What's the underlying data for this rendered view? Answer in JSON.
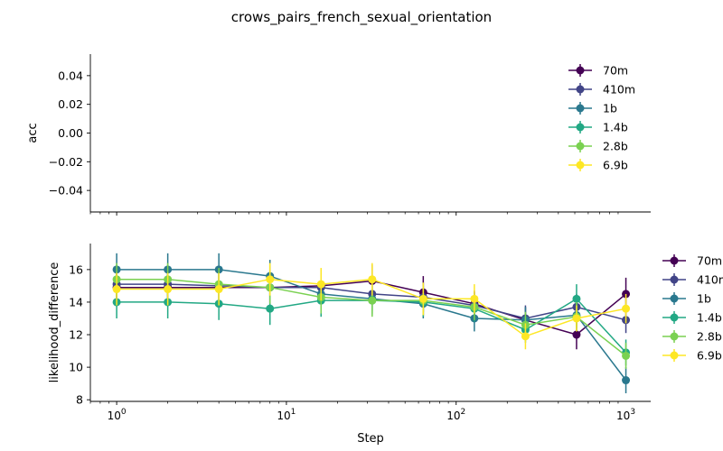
{
  "title": "crows_pairs_french_sexual_orientation",
  "colors": {
    "70m": "#440154",
    "410m": "#414487",
    "1b": "#2a788e",
    "1.4b": "#22a884",
    "2.8b": "#7ad151",
    "6.9b": "#fde725"
  },
  "chart_data": [
    {
      "type": "line",
      "ylabel": "acc",
      "xscale": "log",
      "ylim": [
        -0.055,
        0.055
      ],
      "yticks": [
        "0.04",
        "0.02",
        "0.00",
        "−0.02",
        "−0.04"
      ],
      "ytick_values": [
        0.04,
        0.02,
        0.0,
        -0.02,
        -0.04
      ],
      "legend": [
        "70m",
        "410m",
        "1b",
        "1.4b",
        "2.8b",
        "6.9b"
      ],
      "legend_position": "top-right",
      "series": [
        {
          "name": "70m",
          "x": [],
          "y": []
        },
        {
          "name": "410m",
          "x": [],
          "y": []
        },
        {
          "name": "1b",
          "x": [],
          "y": []
        },
        {
          "name": "1.4b",
          "x": [],
          "y": []
        },
        {
          "name": "2.8b",
          "x": [],
          "y": []
        },
        {
          "name": "6.9b",
          "x": [],
          "y": []
        }
      ]
    },
    {
      "type": "line",
      "xlabel": "Step",
      "ylabel": "likelihood_difference",
      "xscale": "log",
      "xlim": [
        0.7,
        1400
      ],
      "ylim": [
        7.9,
        17.6
      ],
      "xticks": [
        1,
        10,
        100,
        1000
      ],
      "yticks": [
        8,
        10,
        12,
        14,
        16
      ],
      "legend": [
        "70m",
        "410m",
        "1b",
        "1.4b",
        "2.8b",
        "6.9b"
      ],
      "legend_position": "outside-right",
      "series": [
        {
          "name": "70m",
          "x": [
            1,
            2,
            4,
            8,
            16,
            32,
            64,
            128,
            256,
            512,
            1000
          ],
          "y": [
            14.9,
            14.9,
            14.9,
            14.9,
            15.0,
            15.3,
            14.6,
            13.9,
            12.9,
            12.0,
            14.5
          ],
          "err": [
            1.0,
            1.0,
            1.0,
            1.0,
            1.0,
            1.0,
            1.0,
            0.8,
            0.8,
            0.9,
            1.0
          ]
        },
        {
          "name": "410m",
          "x": [
            1,
            2,
            4,
            8,
            16,
            32,
            64,
            128,
            256,
            512,
            1000
          ],
          "y": [
            15.1,
            15.1,
            15.0,
            14.9,
            14.9,
            14.5,
            14.3,
            13.8,
            13.0,
            13.7,
            12.9
          ],
          "err": [
            1.0,
            1.0,
            1.0,
            1.0,
            1.0,
            1.0,
            0.9,
            0.8,
            0.8,
            0.8,
            0.8
          ]
        },
        {
          "name": "1b",
          "x": [
            1,
            2,
            4,
            8,
            16,
            32,
            64,
            128,
            256,
            512,
            1000
          ],
          "y": [
            16.0,
            16.0,
            16.0,
            15.6,
            14.5,
            14.2,
            13.9,
            13.0,
            12.9,
            13.2,
            9.2
          ],
          "err": [
            1.0,
            1.0,
            1.0,
            1.0,
            0.9,
            0.9,
            0.9,
            0.8,
            0.8,
            0.8,
            0.8
          ]
        },
        {
          "name": "1.4b",
          "x": [
            1,
            2,
            4,
            8,
            16,
            32,
            64,
            128,
            256,
            512,
            1000
          ],
          "y": [
            14.0,
            14.0,
            13.9,
            13.6,
            14.1,
            14.1,
            14.0,
            13.6,
            12.3,
            14.2,
            10.9
          ],
          "err": [
            1.0,
            1.0,
            1.0,
            1.0,
            1.0,
            0.9,
            0.9,
            0.8,
            0.8,
            0.9,
            0.8
          ]
        },
        {
          "name": "2.8b",
          "x": [
            1,
            2,
            4,
            8,
            16,
            32,
            64,
            128,
            256,
            512,
            1000
          ],
          "y": [
            15.4,
            15.4,
            15.1,
            14.9,
            14.3,
            14.1,
            14.1,
            13.7,
            12.6,
            13.1,
            10.7
          ],
          "err": [
            1.0,
            1.0,
            1.0,
            1.0,
            1.0,
            1.0,
            0.9,
            0.8,
            0.8,
            0.9,
            0.8
          ]
        },
        {
          "name": "6.9b",
          "x": [
            1,
            2,
            4,
            8,
            16,
            32,
            64,
            128,
            256,
            512,
            1000
          ],
          "y": [
            14.8,
            14.8,
            14.8,
            15.4,
            15.1,
            15.4,
            14.2,
            14.2,
            11.9,
            13.0,
            13.6
          ],
          "err": [
            1.0,
            1.0,
            1.0,
            1.0,
            1.0,
            1.0,
            1.0,
            0.9,
            0.8,
            0.8,
            0.9
          ]
        }
      ]
    }
  ]
}
